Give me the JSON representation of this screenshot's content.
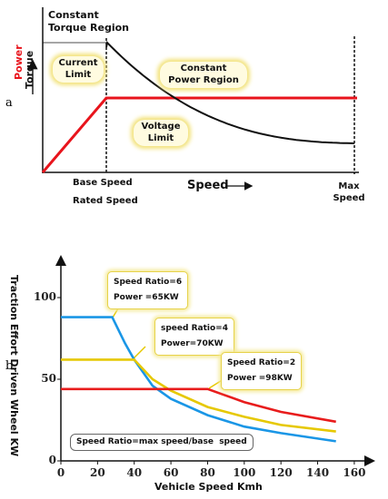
{
  "chart_data": [
    {
      "type": "schematic",
      "label": "a",
      "y_label_power": "Power",
      "y_label_torque": "Torque",
      "annotations": [
        "Constant Torque Region",
        "Current Limit",
        "Constant Power Region",
        "Voltage Limit"
      ],
      "x_axis_label": "Speed",
      "base_speed_label": "Base Speed",
      "rated_speed_label": "Rated Speed",
      "max_speed_label": "Max Speed",
      "power_color": "#e8141c",
      "torque_color": "#111111"
    },
    {
      "type": "line",
      "label": "b",
      "x_axis_label": "Vehicle Speed Kmh",
      "y_axis_label": "Traction Effort Driven Wheel KW",
      "xlim": [
        0,
        165
      ],
      "xticks": [
        0,
        20,
        40,
        60,
        80,
        100,
        120,
        140,
        160
      ],
      "ylim": [
        0,
        120
      ],
      "yticks": [
        0,
        50,
        100
      ],
      "series": [
        {
          "color": "#1a96e6",
          "x": [
            0,
            28,
            35,
            40,
            50,
            60,
            80,
            100,
            120,
            150
          ],
          "values": [
            88,
            88,
            72,
            62,
            46,
            38,
            28,
            21,
            17,
            12
          ]
        },
        {
          "color": "#e6c800",
          "x": [
            0,
            40,
            50,
            60,
            80,
            100,
            120,
            150
          ],
          "values": [
            62,
            62,
            50,
            43,
            33,
            27,
            22,
            18
          ]
        },
        {
          "color": "#e81c1c",
          "x": [
            0,
            80,
            100,
            120,
            150
          ],
          "values": [
            44,
            44,
            36,
            30,
            24
          ]
        }
      ],
      "annotations": [
        [
          "Speed Ratio=6",
          "Power =65KW"
        ],
        [
          "speed Ratio=4",
          "Power=70KW"
        ],
        [
          "Speed Ratio=2",
          "Power =98KW"
        ]
      ],
      "note": "Speed Ratio=max speed/base  speed"
    }
  ]
}
